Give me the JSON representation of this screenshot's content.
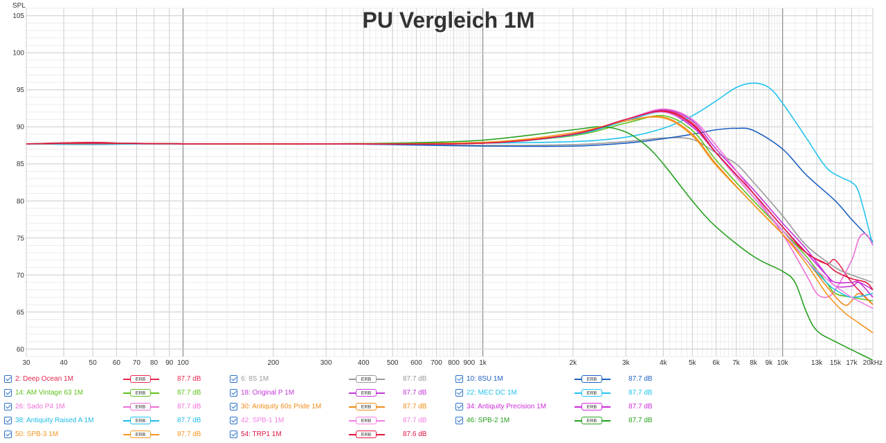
{
  "chart_data": {
    "type": "line",
    "title": "PU Vergleich 1M",
    "ylabel": "SPL",
    "xunit": "kHz",
    "xscale": "log",
    "xlim": [
      30,
      20000
    ],
    "ylim": [
      59,
      106
    ],
    "grid": true,
    "x_ticks": [
      {
        "v": 30,
        "label": "30"
      },
      {
        "v": 40,
        "label": "40"
      },
      {
        "v": 50,
        "label": "50"
      },
      {
        "v": 60,
        "label": "60"
      },
      {
        "v": 70,
        "label": "70"
      },
      {
        "v": 80,
        "label": "80"
      },
      {
        "v": 90,
        "label": "90"
      },
      {
        "v": 100,
        "label": "100"
      },
      {
        "v": 200,
        "label": "200"
      },
      {
        "v": 300,
        "label": "300"
      },
      {
        "v": 400,
        "label": "400"
      },
      {
        "v": 500,
        "label": "500"
      },
      {
        "v": 600,
        "label": "600"
      },
      {
        "v": 700,
        "label": "700"
      },
      {
        "v": 800,
        "label": "800"
      },
      {
        "v": 900,
        "label": "900"
      },
      {
        "v": 1000,
        "label": "1k"
      },
      {
        "v": 2000,
        "label": "2k"
      },
      {
        "v": 3000,
        "label": "3k"
      },
      {
        "v": 4000,
        "label": "4k"
      },
      {
        "v": 5000,
        "label": "5k"
      },
      {
        "v": 6000,
        "label": "6k"
      },
      {
        "v": 7000,
        "label": "7k"
      },
      {
        "v": 8000,
        "label": "8k"
      },
      {
        "v": 9000,
        "label": "9k"
      },
      {
        "v": 10000,
        "label": "10k"
      },
      {
        "v": 13000,
        "label": "13k"
      },
      {
        "v": 15000,
        "label": "15k"
      },
      {
        "v": 17000,
        "label": "17k"
      },
      {
        "v": 20000,
        "label": "20kHz"
      }
    ],
    "y_ticks": [
      {
        "v": 60,
        "label": "60"
      },
      {
        "v": 65,
        "label": "65"
      },
      {
        "v": 70,
        "label": "70"
      },
      {
        "v": 75,
        "label": "75"
      },
      {
        "v": 80,
        "label": "80"
      },
      {
        "v": 85,
        "label": "85"
      },
      {
        "v": 90,
        "label": "90"
      },
      {
        "v": 95,
        "label": "95"
      },
      {
        "v": 100,
        "label": "100"
      },
      {
        "v": 105,
        "label": "105"
      }
    ],
    "series": [
      {
        "name": "2: Deep Ocean 1M",
        "color": "#e8264e",
        "level": "87.7 dB",
        "x": [
          30,
          50,
          70,
          100,
          300,
          1000,
          2000,
          3000,
          4000,
          5000,
          6000,
          8000,
          10000,
          12000,
          14000,
          15000,
          17000,
          20000
        ],
        "y": [
          87.7,
          87.9,
          87.7,
          87.7,
          87.7,
          87.8,
          89.0,
          91.0,
          92.2,
          90.5,
          86.5,
          80.5,
          76.0,
          73.0,
          71.5,
          72.0,
          69.0,
          66.0
        ]
      },
      {
        "name": "6: 8S 1M",
        "color": "#999999",
        "level": "87.7 dB",
        "x": [
          30,
          50,
          70,
          100,
          300,
          1000,
          2000,
          3000,
          4000,
          5000,
          6000,
          7000,
          8000,
          10000,
          12000,
          15000,
          17000,
          20000
        ],
        "y": [
          87.7,
          87.6,
          87.7,
          87.7,
          87.7,
          87.5,
          87.6,
          88.0,
          88.5,
          88.3,
          86.5,
          85.0,
          82.5,
          78.0,
          74.0,
          71.0,
          70.0,
          69.0
        ]
      },
      {
        "name": "10: 8SU 1M",
        "color": "#1b5fc1",
        "level": "87.7 dB",
        "x": [
          30,
          50,
          100,
          300,
          500,
          1000,
          2000,
          3000,
          4000,
          5000,
          6000,
          7000,
          8000,
          10000,
          12000,
          15000,
          17000,
          20000
        ],
        "y": [
          87.7,
          87.7,
          87.7,
          87.7,
          87.6,
          87.4,
          87.4,
          87.8,
          88.4,
          89.0,
          89.6,
          89.8,
          89.5,
          87.0,
          83.5,
          80.0,
          77.5,
          74.5
        ]
      },
      {
        "name": "14: AM Vintage 63 1M",
        "color": "#5ec21f",
        "level": "87.7 dB",
        "x": [
          30,
          50,
          100,
          300,
          1000,
          2000,
          3000,
          4000,
          5000,
          6000,
          8000,
          10000,
          12000,
          14000,
          15000,
          17000,
          20000
        ],
        "y": [
          87.7,
          87.8,
          87.7,
          87.7,
          87.9,
          88.8,
          90.5,
          91.5,
          89.5,
          85.5,
          80.0,
          76.0,
          72.5,
          69.0,
          67.5,
          67.0,
          66.5
        ]
      },
      {
        "name": "18: Original P 1M",
        "color": "#c236d8",
        "level": "87.7 dB",
        "x": [
          30,
          50,
          100,
          300,
          1000,
          2000,
          3000,
          4000,
          5000,
          6000,
          8000,
          10000,
          12000,
          14000,
          15000,
          17000,
          18000,
          20000
        ],
        "y": [
          87.7,
          87.8,
          87.7,
          87.7,
          87.8,
          89.0,
          91.0,
          92.3,
          90.8,
          87.0,
          81.5,
          77.0,
          73.5,
          70.0,
          68.5,
          68.5,
          69.0,
          68.0
        ]
      },
      {
        "name": "22: MEC DC 1M",
        "color": "#22c3ef",
        "level": "87.7 dB",
        "x": [
          30,
          50,
          100,
          300,
          1000,
          2000,
          3000,
          4000,
          5000,
          6000,
          7000,
          8000,
          9000,
          10000,
          12000,
          14000,
          16000,
          17000,
          18000,
          20000
        ],
        "y": [
          87.7,
          87.7,
          87.7,
          87.7,
          87.8,
          88.0,
          88.6,
          89.8,
          91.5,
          93.5,
          95.3,
          95.9,
          95.3,
          93.2,
          88.5,
          84.5,
          83.0,
          82.5,
          81.0,
          74.0
        ]
      },
      {
        "name": "26: Sado P4 1M",
        "color": "#ef6fd6",
        "level": "87.7 dB",
        "x": [
          30,
          50,
          100,
          300,
          1000,
          2000,
          3000,
          4000,
          5000,
          6000,
          8000,
          10000,
          12000,
          13000,
          14000,
          15000,
          17000,
          18000,
          19000,
          20000
        ],
        "y": [
          87.7,
          87.8,
          87.7,
          87.7,
          87.8,
          89.0,
          91.0,
          92.4,
          91.0,
          87.5,
          81.0,
          75.5,
          70.0,
          67.5,
          67.0,
          68.0,
          72.0,
          75.0,
          75.5,
          74.0
        ]
      },
      {
        "name": "30: Antiquity 60s Pride 1M",
        "color": "#f08c1a",
        "level": "87.7 dB",
        "x": [
          30,
          50,
          100,
          300,
          1000,
          2000,
          3000,
          4000,
          5000,
          6000,
          8000,
          10000,
          12000,
          14000,
          16000,
          17000,
          18000,
          20000
        ],
        "y": [
          87.7,
          87.8,
          87.7,
          87.7,
          87.9,
          89.0,
          90.8,
          91.3,
          89.0,
          85.0,
          79.5,
          75.5,
          72.0,
          68.5,
          66.0,
          66.5,
          67.5,
          66.0
        ]
      },
      {
        "name": "34: Antiquity Precision 1M",
        "color": "#cc2ad8",
        "level": "87.7 dB",
        "x": [
          30,
          50,
          100,
          300,
          1000,
          2000,
          3000,
          4000,
          5000,
          6000,
          8000,
          10000,
          12000,
          14000,
          15000,
          17000,
          18000,
          20000
        ],
        "y": [
          87.7,
          87.8,
          87.7,
          87.7,
          87.8,
          89.0,
          91.0,
          92.0,
          90.0,
          86.5,
          81.0,
          76.5,
          73.0,
          70.0,
          69.0,
          69.0,
          69.0,
          67.0
        ]
      },
      {
        "name": "38: Antiquity Raised A 1M",
        "color": "#1fbde6",
        "level": "87.7 dB",
        "x": [
          30,
          50,
          100,
          300,
          1000,
          2000,
          3000,
          4000,
          5000,
          6000,
          8000,
          10000,
          12000,
          14000,
          15000,
          17000,
          20000
        ],
        "y": [
          87.7,
          87.8,
          87.7,
          87.7,
          87.8,
          88.9,
          90.8,
          92.0,
          90.2,
          86.5,
          80.5,
          76.0,
          72.0,
          69.0,
          68.0,
          67.0,
          67.5
        ]
      },
      {
        "name": "42: SPB-1 1M",
        "color": "#f27ee4",
        "level": "87.7 dB",
        "x": [
          30,
          50,
          100,
          300,
          1000,
          2000,
          3000,
          4000,
          5000,
          6000,
          8000,
          10000,
          12000,
          14000,
          15000,
          17000,
          20000
        ],
        "y": [
          87.7,
          87.8,
          87.7,
          87.7,
          87.8,
          89.0,
          91.0,
          92.0,
          90.2,
          86.5,
          80.5,
          76.0,
          72.0,
          69.5,
          68.5,
          67.0,
          65.5
        ]
      },
      {
        "name": "46: SPB-2 1M",
        "color": "#24a01e",
        "level": "87.7 dB",
        "x": [
          30,
          50,
          100,
          300,
          500,
          1000,
          2000,
          2500,
          3000,
          3500,
          4000,
          5000,
          6000,
          8000,
          10000,
          11000,
          12000,
          13000,
          15000,
          20000
        ],
        "y": [
          87.7,
          87.8,
          87.7,
          87.7,
          87.8,
          88.2,
          89.6,
          90.0,
          89.3,
          87.5,
          85.0,
          80.0,
          76.5,
          72.5,
          70.5,
          69.0,
          65.0,
          62.5,
          61.0,
          58.5
        ]
      },
      {
        "name": "50: SPB-3 1M",
        "color": "#f5961f",
        "level": "87.7 dB",
        "x": [
          30,
          50,
          100,
          300,
          1000,
          2000,
          3000,
          4000,
          5000,
          6000,
          8000,
          10000,
          12000,
          14000,
          16000,
          18000,
          20000
        ],
        "y": [
          87.7,
          87.8,
          87.7,
          87.7,
          87.9,
          89.2,
          90.8,
          91.2,
          88.8,
          84.8,
          79.5,
          75.5,
          71.5,
          67.5,
          65.0,
          63.5,
          62.2
        ]
      },
      {
        "name": "54: TRP1 1M",
        "color": "#e0123e",
        "level": "87.6 dB",
        "x": [
          30,
          50,
          100,
          300,
          1000,
          2000,
          3000,
          4000,
          5000,
          6000,
          8000,
          10000,
          12000,
          14000,
          15000,
          17000,
          19000,
          20000
        ],
        "y": [
          87.7,
          87.8,
          87.7,
          87.7,
          87.8,
          89.0,
          91.0,
          92.1,
          90.3,
          86.5,
          81.0,
          76.5,
          73.0,
          71.5,
          70.5,
          69.5,
          69.0,
          68.0
        ]
      }
    ]
  },
  "legend": {
    "erb_label": "ERB"
  }
}
